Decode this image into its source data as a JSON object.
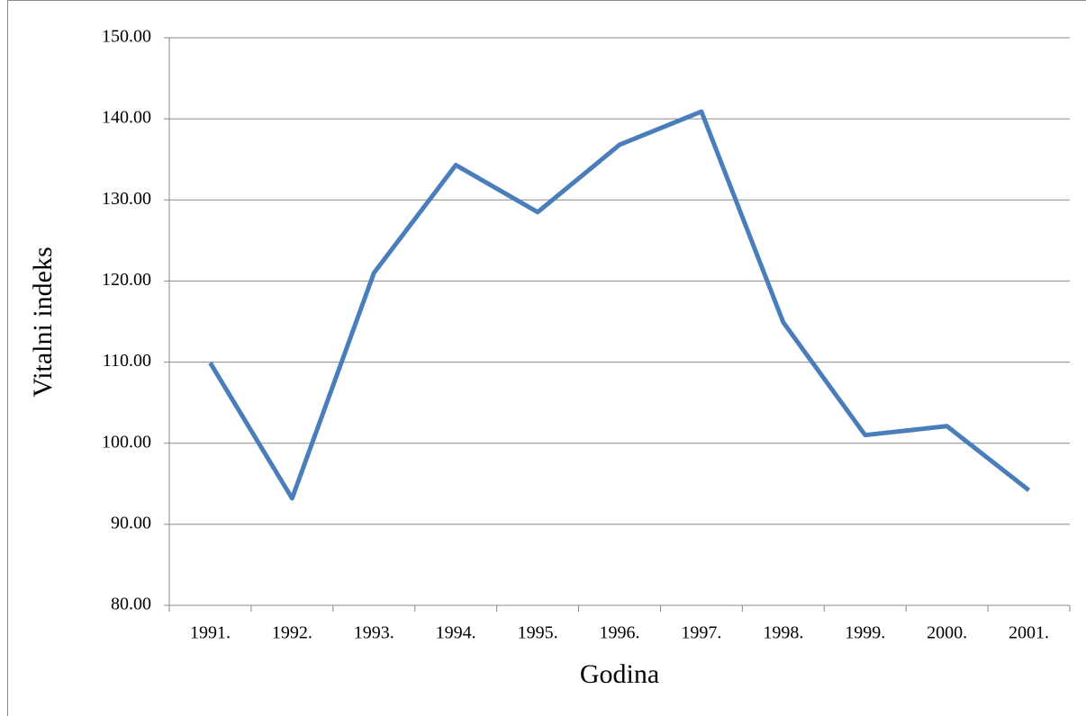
{
  "chart_data": {
    "type": "line",
    "x_label": "Godina",
    "y_label": "Vitalni indeks",
    "categories": [
      "1991.",
      "1992.",
      "1993.",
      "1994.",
      "1995.",
      "1996.",
      "1997.",
      "1998.",
      "1999.",
      "2000.",
      "2001."
    ],
    "series": [
      {
        "name": "Vitalni indeks",
        "color": "#4a7ebb",
        "values": [
          109.9,
          93.2,
          121.0,
          134.3,
          128.5,
          136.8,
          140.9,
          114.9,
          101.0,
          102.1,
          94.2
        ]
      }
    ],
    "ylim": [
      80,
      150
    ],
    "yticks": [
      {
        "value": 80,
        "label": "80.00"
      },
      {
        "value": 90,
        "label": "90.00"
      },
      {
        "value": 100,
        "label": "100.00"
      },
      {
        "value": 110,
        "label": "110.00"
      },
      {
        "value": 120,
        "label": "120.00"
      },
      {
        "value": 130,
        "label": "130.00"
      },
      {
        "value": 140,
        "label": "140.00"
      },
      {
        "value": 150,
        "label": "150.00"
      }
    ],
    "grid": true
  }
}
